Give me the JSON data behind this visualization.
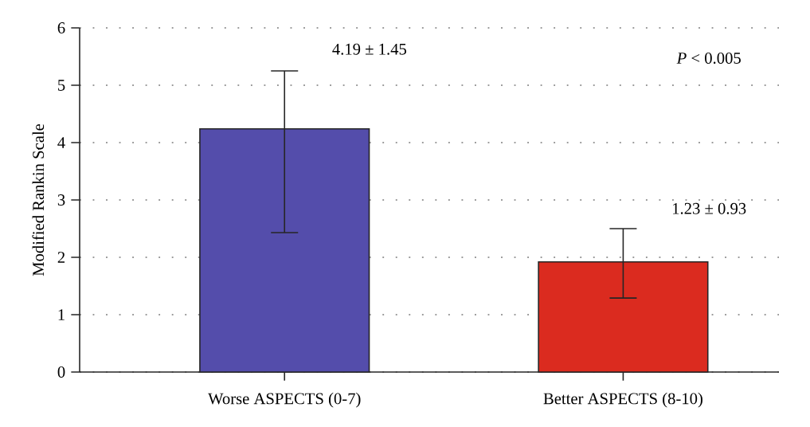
{
  "chart_data": {
    "type": "bar",
    "ylabel": "Modified Rankin Scale",
    "categories": [
      "Worse ASPECTS (0-7)",
      "Better ASPECTS (8-10)"
    ],
    "values": [
      4.24,
      1.92
    ],
    "colors": [
      "#544dab",
      "#db2b1f"
    ],
    "errors": [
      [
        2.43,
        5.25
      ],
      [
        1.29,
        2.5
      ]
    ],
    "ylim": [
      0,
      6
    ],
    "yticks": [
      0,
      1,
      2,
      3,
      4,
      5,
      6
    ],
    "grid": "y",
    "annotations": [
      "4.19 ± 1.45",
      "1.23 ± 0.93",
      "*P* < 0.005"
    ]
  }
}
